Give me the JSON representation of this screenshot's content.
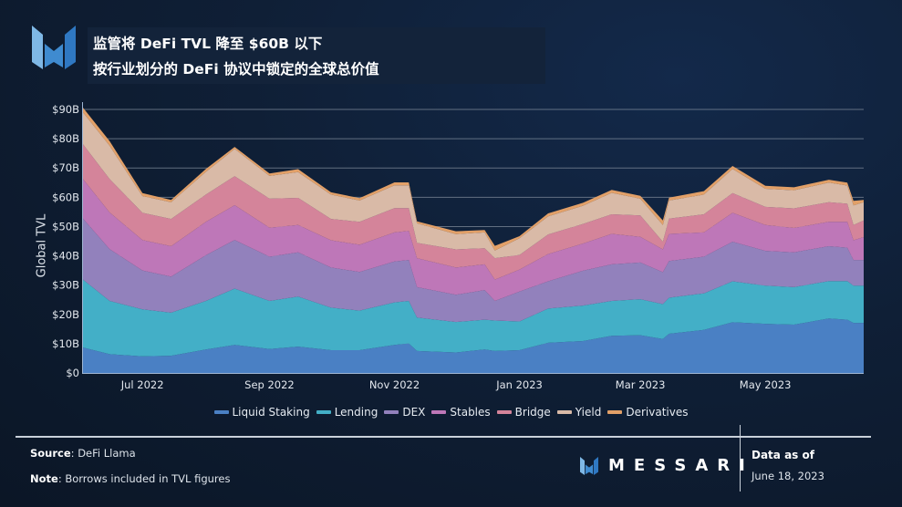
{
  "header": {
    "title": "监管将 DeFi TVL 降至 $60B 以下",
    "subtitle": "按行业划分的 DeFi 协议中锁定的全球总价值"
  },
  "footer": {
    "source_label": "Source",
    "source_value": "DeFi Llama",
    "note_label": "Note",
    "note_value": "Borrows included in TVL figures",
    "brand": "MESSARI",
    "data_as_of_label": "Data as of",
    "data_as_of_date": "June 18, 2023"
  },
  "chart_data": {
    "type": "area",
    "stacked": true,
    "title": "按行业划分的 DeFi 协议中锁定的全球总价值",
    "xlabel": "",
    "ylabel": "Global TVL",
    "ylim": [
      0,
      90
    ],
    "y_unit": "B USD",
    "y_ticks": [
      "$0",
      "$10B",
      "$20B",
      "$30B",
      "$40B",
      "$50B",
      "$60B",
      "$70B",
      "$80B",
      "$90B"
    ],
    "y_tick_values": [
      0,
      10,
      20,
      30,
      40,
      50,
      60,
      70,
      80,
      90
    ],
    "xlim": [
      "2022-06-02",
      "2023-06-18"
    ],
    "x_ticks": [
      {
        "label": "Jul 2022",
        "date": "2022-07-01"
      },
      {
        "label": "Sep 2022",
        "date": "2022-09-01"
      },
      {
        "label": "Nov 2022",
        "date": "2022-11-01"
      },
      {
        "label": "Jan 2023",
        "date": "2023-01-01"
      },
      {
        "label": "Mar 2023",
        "date": "2023-03-01"
      },
      {
        "label": "May 2023",
        "date": "2023-05-01"
      }
    ],
    "grid": true,
    "legend_position": "bottom",
    "x": [
      "2022-06-02",
      "2022-06-15",
      "2022-07-01",
      "2022-07-15",
      "2022-08-01",
      "2022-08-15",
      "2022-09-01",
      "2022-09-15",
      "2022-10-01",
      "2022-10-15",
      "2022-11-01",
      "2022-11-08",
      "2022-11-12",
      "2022-12-01",
      "2022-12-15",
      "2022-12-20",
      "2023-01-01",
      "2023-01-15",
      "2023-02-01",
      "2023-02-15",
      "2023-03-01",
      "2023-03-12",
      "2023-03-15",
      "2023-04-01",
      "2023-04-15",
      "2023-05-01",
      "2023-05-15",
      "2023-06-01",
      "2023-06-10",
      "2023-06-13",
      "2023-06-18"
    ],
    "series": [
      {
        "name": "Liquid Staking",
        "color": "#4a80c4",
        "values": [
          8.7,
          6.4,
          5.7,
          5.9,
          8.0,
          9.6,
          8.2,
          9.0,
          7.8,
          7.8,
          9.6,
          10.1,
          7.5,
          7.0,
          8.0,
          7.5,
          7.8,
          10.3,
          10.9,
          12.7,
          12.9,
          11.6,
          13.4,
          14.7,
          17.3,
          16.8,
          16.5,
          18.6,
          18.2,
          17.1,
          17.1
        ]
      },
      {
        "name": "Lending",
        "color": "#43afc7",
        "values": [
          23.2,
          18.2,
          16.0,
          14.7,
          16.6,
          19.2,
          16.4,
          17.1,
          14.5,
          13.5,
          14.5,
          14.5,
          11.4,
          10.4,
          10.2,
          10.4,
          9.8,
          11.7,
          12.1,
          11.9,
          12.3,
          11.9,
          12.3,
          12.5,
          14.0,
          13.0,
          12.8,
          12.8,
          13.2,
          12.7,
          12.7
        ]
      },
      {
        "name": "DEX",
        "color": "#9281bc",
        "values": [
          20.8,
          17.7,
          13.3,
          12.3,
          15.6,
          16.6,
          15.1,
          15.1,
          13.7,
          13.2,
          14.0,
          14.0,
          10.4,
          9.3,
          10.1,
          6.7,
          10.2,
          9.3,
          11.9,
          12.5,
          12.5,
          10.9,
          12.5,
          12.5,
          13.5,
          11.9,
          11.9,
          11.9,
          11.4,
          8.8,
          8.8
        ]
      },
      {
        "name": "Stables",
        "color": "#be77b8",
        "values": [
          13.5,
          12.5,
          10.4,
          10.4,
          11.4,
          11.9,
          9.9,
          9.3,
          9.3,
          9.3,
          9.9,
          9.9,
          9.9,
          9.3,
          8.8,
          7.3,
          7.5,
          9.3,
          9.3,
          10.4,
          8.8,
          7.8,
          9.3,
          8.3,
          9.9,
          8.8,
          8.3,
          8.3,
          8.8,
          6.7,
          7.8
        ]
      },
      {
        "name": "Bridge",
        "color": "#d4849a",
        "values": [
          11.9,
          11.4,
          9.3,
          9.3,
          9.3,
          9.9,
          9.9,
          9.3,
          7.3,
          7.8,
          8.3,
          7.8,
          5.2,
          6.2,
          5.5,
          7.3,
          5.0,
          6.7,
          6.7,
          6.7,
          7.3,
          2.6,
          5.2,
          6.2,
          6.7,
          6.2,
          6.7,
          6.7,
          6.2,
          5.2,
          5.7
        ]
      },
      {
        "name": "Yield",
        "color": "#d9baa7",
        "values": [
          10.9,
          11.4,
          5.7,
          5.7,
          7.8,
          9.3,
          7.8,
          8.8,
          8.3,
          7.3,
          7.8,
          7.8,
          6.7,
          5.2,
          5.4,
          2.6,
          5.7,
          6.2,
          6.2,
          7.3,
          5.7,
          5.7,
          6.2,
          6.7,
          8.3,
          6.2,
          6.2,
          6.7,
          6.2,
          6.7,
          6.2
        ]
      },
      {
        "name": "Derivatives",
        "color": "#e2a068",
        "values": [
          1.6,
          1.6,
          1.0,
          0.8,
          1.0,
          0.7,
          0.8,
          1.0,
          0.8,
          0.8,
          1.0,
          1.0,
          0.7,
          1.0,
          0.8,
          1.6,
          0.7,
          1.0,
          1.0,
          1.0,
          1.0,
          1.6,
          1.0,
          1.2,
          1.0,
          1.0,
          1.0,
          1.0,
          1.0,
          1.6,
          0.8
        ]
      }
    ]
  }
}
